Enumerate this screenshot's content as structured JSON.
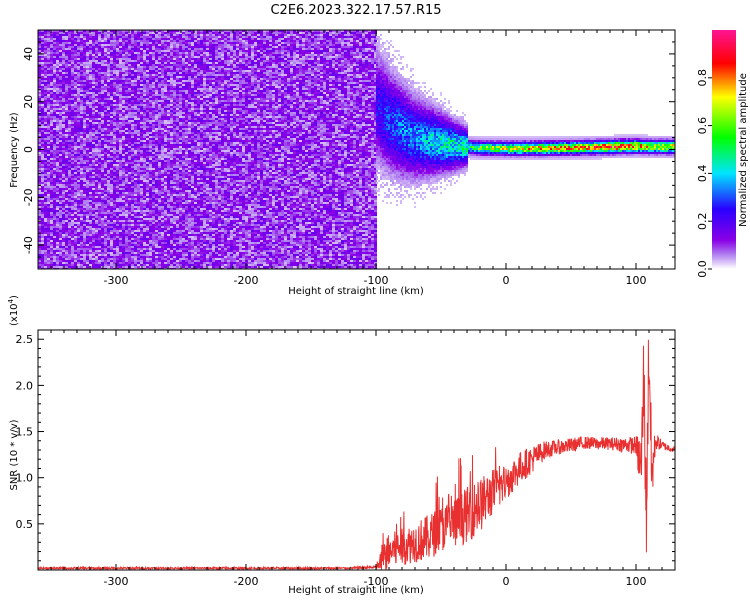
{
  "figure": {
    "title": "C2E6.2023.322.17.57.R15"
  },
  "chart_data": [
    {
      "type": "heatmap",
      "title": "C2E6.2023.322.17.57.R15",
      "xlabel": "Height of straight line (km)",
      "ylabel": "Frequency (Hz)",
      "xlim": [
        -360,
        130
      ],
      "ylim": [
        -50,
        50
      ],
      "x_ticks": [
        -300,
        -200,
        -100,
        0,
        100
      ],
      "y_ticks": [
        -40,
        -20,
        0,
        20,
        40
      ],
      "x_tick_labels": [
        "-300",
        "-200",
        "-100",
        "0",
        "100"
      ],
      "y_tick_labels": [
        "-40",
        "-20",
        "0",
        "20",
        "40"
      ],
      "colorbar": {
        "label": "Normalized spectral amplitude",
        "range": [
          0,
          1
        ],
        "ticks": [
          0.0,
          0.2,
          0.4,
          0.6,
          0.8
        ],
        "tick_labels": [
          "0.0",
          "0.2",
          "0.4",
          "0.6",
          "0.8"
        ],
        "colormap": [
          "#ffffff",
          "#8a00e6",
          "#2a00ff",
          "#00e5ff",
          "#00ff00",
          "#ffff00",
          "#ff0000",
          "#ff1493"
        ]
      },
      "regions": [
        {
          "x": [
            -360,
            -100
          ],
          "description_level": 0.1,
          "pattern": "noise"
        },
        {
          "x": [
            -100,
            -30
          ],
          "center_hz": 5,
          "spread_hz": 18,
          "peak_level": 0.35
        },
        {
          "x": [
            -30,
            130
          ],
          "center_hz": 1,
          "spread_hz": 4,
          "peak_level": 0.9
        }
      ],
      "ridge": {
        "x": [
          -100,
          -90,
          -80,
          -70,
          -60,
          -50,
          -40,
          -30,
          -20,
          0,
          20,
          40,
          60,
          80,
          100,
          110,
          130
        ],
        "freq": [
          18,
          12,
          8,
          5,
          4,
          3,
          2,
          1.5,
          1,
          0.8,
          0.8,
          1,
          1.2,
          1.5,
          1.8,
          1.5,
          1.5
        ],
        "level": [
          0.25,
          0.3,
          0.35,
          0.35,
          0.4,
          0.45,
          0.45,
          0.5,
          0.6,
          0.7,
          0.75,
          0.8,
          0.8,
          0.85,
          0.85,
          0.7,
          0.75
        ]
      }
    },
    {
      "type": "line",
      "xlabel": "Height of straight line (km)",
      "ylabel": "SNR (10 * v/v)",
      "y_multiplier": "(x10^4)",
      "xlim": [
        -360,
        130
      ],
      "ylim": [
        0,
        2.6
      ],
      "x_ticks": [
        -300,
        -200,
        -100,
        0,
        100
      ],
      "y_ticks": [
        0.5,
        1.0,
        1.5,
        2.0,
        2.5
      ],
      "x_tick_labels": [
        "-300",
        "-200",
        "-100",
        "0",
        "100"
      ],
      "y_tick_labels": [
        "0.5",
        "1.0",
        "1.5",
        "2.0",
        "2.5"
      ],
      "color": "#e83030",
      "series": [
        {
          "x": [
            -360,
            -300,
            -200,
            -120,
            -100,
            -95,
            -90,
            -80,
            -70,
            -60,
            -50,
            -40,
            -30,
            -20,
            -10,
            0,
            10,
            20,
            30,
            40,
            50,
            60,
            70,
            80,
            90,
            100,
            104,
            106,
            108,
            110,
            112,
            115,
            120,
            130
          ],
          "values": [
            0.02,
            0.02,
            0.02,
            0.02,
            0.03,
            0.1,
            0.2,
            0.25,
            0.3,
            0.35,
            0.45,
            0.5,
            0.6,
            0.7,
            0.85,
            0.95,
            1.1,
            1.2,
            1.3,
            1.33,
            1.35,
            1.38,
            1.37,
            1.37,
            1.36,
            1.35,
            1.1,
            2.1,
            0.6,
            2.5,
            1.0,
            1.4,
            1.35,
            1.3
          ],
          "noise_amplitude": [
            0.01,
            0.01,
            0.01,
            0.01,
            0.02,
            0.15,
            0.2,
            0.2,
            0.22,
            0.25,
            0.25,
            0.28,
            0.3,
            0.3,
            0.25,
            0.2,
            0.18,
            0.15,
            0.1,
            0.08,
            0.08,
            0.07,
            0.07,
            0.07,
            0.08,
            0.1,
            0.4,
            0.6,
            0.5,
            0.6,
            0.4,
            0.1,
            0.05,
            0.03
          ]
        }
      ]
    }
  ]
}
